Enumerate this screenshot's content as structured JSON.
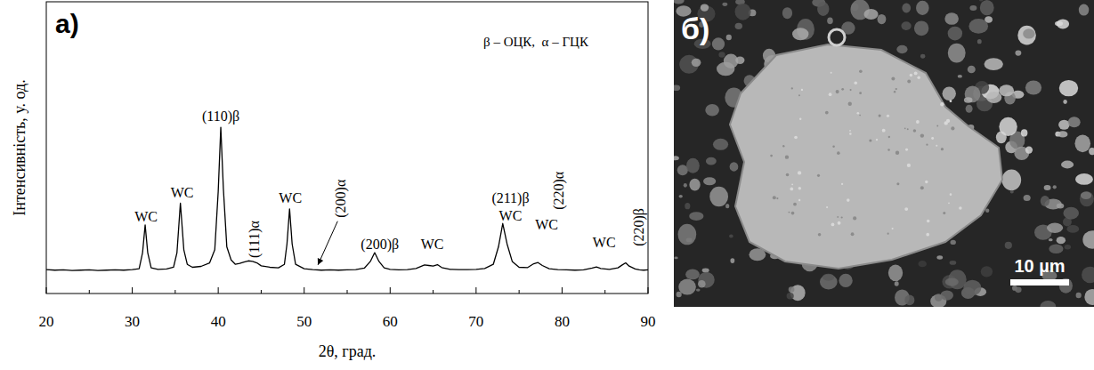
{
  "chart_data": {
    "type": "line",
    "panel_label": "а)",
    "key_text": "β – ОЦК,  α – ГЦК",
    "x_label": "2θ, град.",
    "y_label": "Інтенсивність, у. од.",
    "x": [
      20,
      21,
      22,
      23,
      24,
      25,
      26,
      27,
      28,
      29,
      30,
      30.8,
      31.2,
      31.5,
      31.8,
      32.2,
      33,
      34,
      34.8,
      35.2,
      35.6,
      36.0,
      36.4,
      37,
      38,
      39,
      39.6,
      40.0,
      40.3,
      40.6,
      41.0,
      41.5,
      42,
      42.5,
      43,
      43.5,
      44,
      44.5,
      45,
      46,
      47,
      47.7,
      48.0,
      48.3,
      48.6,
      49.0,
      50,
      51,
      52,
      53,
      54,
      55,
      56,
      57,
      57.7,
      58.2,
      58.7,
      59.3,
      60,
      61,
      62,
      63,
      64,
      64.5,
      65,
      65.5,
      66,
      67,
      68,
      69,
      70,
      71,
      72,
      72.6,
      73.1,
      73.6,
      74.2,
      75,
      76,
      76.7,
      77.2,
      77.7,
      78.5,
      79.5,
      80.5,
      81.5,
      82.5,
      83.5,
      84,
      84.5,
      85.5,
      86.5,
      87,
      87.4,
      87.8,
      88.5,
      89,
      89.5,
      90
    ],
    "series": [
      {
        "color": "#000000",
        "values": [
          8.2,
          8.0,
          8.1,
          7.9,
          8.0,
          8.1,
          7.9,
          8.0,
          8.1,
          8.0,
          8.2,
          8.5,
          14,
          23.5,
          14,
          8.8,
          8.3,
          8.4,
          9,
          14,
          31,
          15,
          10,
          9,
          9.3,
          10.5,
          15,
          35,
          57,
          36,
          16,
          11.5,
          10,
          10.3,
          10.8,
          11.2,
          11,
          10.5,
          9.5,
          9,
          8.8,
          10,
          17,
          29,
          17,
          10,
          8.5,
          8.2,
          8.0,
          8.1,
          8.0,
          8.1,
          8.2,
          8.7,
          11,
          14,
          11,
          8.8,
          8.3,
          8.1,
          8.2,
          8.6,
          9.8,
          9.6,
          9.4,
          9.9,
          8.9,
          8.3,
          8.2,
          8.2,
          8.3,
          8.6,
          10,
          16,
          24,
          17,
          11,
          9,
          8.9,
          10.2,
          10.6,
          9.6,
          8.5,
          8.2,
          8.1,
          8.0,
          8.1,
          8.7,
          9.1,
          8.6,
          8.3,
          8.8,
          9.8,
          10.5,
          9.4,
          8.4,
          8.1,
          8.0,
          8.1
        ]
      }
    ],
    "xlim": [
      20,
      90
    ],
    "xticks": [
      20,
      30,
      40,
      50,
      60,
      70,
      80,
      90
    ],
    "ylim": [
      0,
      100
    ],
    "tick_labels": "x",
    "grid": false,
    "annotations": [
      {
        "text": "WC",
        "x": 31.6,
        "y": 24.6
      },
      {
        "text": "WC",
        "x": 35.8,
        "y": 33
      },
      {
        "text": "(110)β",
        "x": 40.3,
        "y": 59
      },
      {
        "text": "(111)α",
        "x": 44.2,
        "y": 12.2
      },
      {
        "text": "WC",
        "x": 48.4,
        "y": 31
      },
      {
        "text": "(200)α",
        "x": 54.2,
        "y": 26,
        "point": [
          51.6,
          9.8
        ]
      },
      {
        "text": "(200)β",
        "x": 58.8,
        "y": 15.2
      },
      {
        "text": "WC",
        "x": 64.9,
        "y": 15.2
      },
      {
        "text": "(211)β",
        "x": 74.0,
        "y": 31
      },
      {
        "text": "WC",
        "x": 74.0,
        "y": 25
      },
      {
        "text": "WC",
        "x": 78.2,
        "y": 22
      },
      {
        "text": "(220)α",
        "x": 79.6,
        "y": 28.7
      },
      {
        "text": "WC",
        "x": 84.9,
        "y": 15.8
      },
      {
        "text": "(220)β",
        "x": 88.9,
        "y": 16.2
      }
    ]
  },
  "image_panel": {
    "label": "б)",
    "scale_label": "10 µm"
  }
}
